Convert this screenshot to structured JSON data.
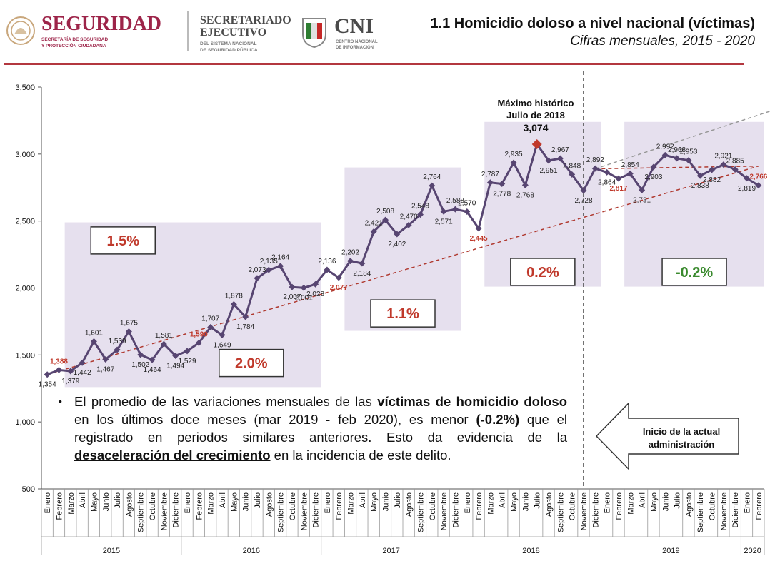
{
  "header": {
    "seguridad_name": "SEGURIDAD",
    "seguridad_sub1": "SECRETARÍA DE SEGURIDAD",
    "seguridad_sub2": "Y PROTECCIÓN CIUDADANA",
    "sesnsp_line1": "SECRETARIADO",
    "sesnsp_line2": "EJECUTIVO",
    "sesnsp_sub1": "DEL SISTEMA NACIONAL",
    "sesnsp_sub2": "DE SEGURIDAD PÚBLICA",
    "cni_name": "CNI",
    "cni_sub1": "CENTRO NACIONAL",
    "cni_sub2": "DE INFORMACIÓN",
    "title": "1.1 Homicidio doloso a nivel nacional (víctimas)",
    "subtitle": "Cifras mensuales, 2015 - 2020"
  },
  "colors": {
    "line": "#574571",
    "trend": "#b03a30",
    "highlight": "#c0392b",
    "box_fill": "#e6e0ee",
    "positive": "#c0392b",
    "negative": "#3a8a2e",
    "max_marker": "#c0392b",
    "header_rule": "#b3373f"
  },
  "chart_data": {
    "type": "line",
    "ylim": [
      500,
      3500
    ],
    "yticks": [
      "500",
      "1,000",
      "1,500",
      "2,000",
      "2,500",
      "3,000",
      "3,500"
    ],
    "months": [
      "Enero",
      "Febrero",
      "Marzo",
      "Abril",
      "Mayo",
      "Junio",
      "Julio",
      "Agosto",
      "Septiembre",
      "Octubre",
      "Noviembre",
      "Diciembre",
      "Enero",
      "Febrero",
      "Marzo",
      "Abril",
      "Mayo",
      "Junio",
      "Julio",
      "Agosto",
      "Septiembre",
      "Octubre",
      "Noviembre",
      "Diciembre",
      "Enero",
      "Febrero",
      "Marzo",
      "Abril",
      "Mayo",
      "Junio",
      "Julio",
      "Agosto",
      "Septiembre",
      "Octubre",
      "Noviembre",
      "Diciembre",
      "Enero",
      "Febrero",
      "Marzo",
      "Abril",
      "Mayo",
      "Junio",
      "Julio",
      "Agosto",
      "Septiembre",
      "Octubre",
      "Noviembre",
      "Diciembre",
      "Enero",
      "Febrero",
      "Marzo",
      "Abril",
      "Mayo",
      "Junio",
      "Julio",
      "Agosto",
      "Septiembre",
      "Octubre",
      "Noviembre",
      "Diciembre",
      "Enero",
      "Febrero"
    ],
    "years": [
      {
        "label": "2015",
        "start": 0,
        "end": 11
      },
      {
        "label": "2016",
        "start": 12,
        "end": 23
      },
      {
        "label": "2017",
        "start": 24,
        "end": 35
      },
      {
        "label": "2018",
        "start": 36,
        "end": 47
      },
      {
        "label": "2019",
        "start": 48,
        "end": 59
      },
      {
        "label": "2020",
        "start": 60,
        "end": 61
      }
    ],
    "values": [
      1354,
      1388,
      1379,
      1442,
      1601,
      1467,
      1539,
      1675,
      1502,
      1464,
      1581,
      1494,
      1529,
      1590,
      1707,
      1649,
      1878,
      1784,
      2073,
      2135,
      2164,
      2007,
      2001,
      2028,
      2136,
      2077,
      2202,
      2184,
      2421,
      2508,
      2402,
      2470,
      2548,
      2764,
      2571,
      2588,
      2570,
      2445,
      2787,
      2778,
      2935,
      2768,
      3074,
      2951,
      2967,
      2848,
      2728,
      2892,
      2864,
      2817,
      2854,
      2731,
      2903,
      2992,
      2968,
      2953,
      2838,
      2882,
      2921,
      2885,
      2819,
      2766
    ],
    "labels": [
      "1,354",
      "1,388",
      "1,379",
      "1,442",
      "1,601",
      "1,467",
      "1,539",
      "1,675",
      "1,502",
      "1,464",
      "1,581",
      "1,494",
      "1,529",
      "1,590",
      "1,707",
      "1,649",
      "1,878",
      "1,784",
      "2,073",
      "2,135",
      "2,164",
      "2,007",
      "2,001",
      "2,028",
      "2,136",
      "2,077",
      "2,202",
      "2,184",
      "2,421",
      "2,508",
      "2,402",
      "2,470",
      "2,548",
      "2,764",
      "2,571",
      "2,588",
      "2,570",
      "2,445",
      "2,787",
      "2,778",
      "2,935",
      "2,768",
      "3,074",
      "2,951",
      "2,967",
      "2,848",
      "2,728",
      "2,892",
      "2,864",
      "2,817",
      "2,854",
      "2,731",
      "2,903",
      "2,992",
      "2,968",
      "2,953",
      "2,838",
      "2,882",
      "2,921",
      "2,885",
      "2,819",
      "2,766"
    ],
    "label_pos": [
      "below",
      "above",
      "below",
      "below",
      "above",
      "below",
      "above",
      "above",
      "below",
      "below",
      "above",
      "below",
      "below",
      "above",
      "above",
      "below",
      "above",
      "below",
      "above",
      "above",
      "above",
      "below",
      "below",
      "below",
      "above",
      "below",
      "above",
      "below",
      "above",
      "above",
      "below",
      "above",
      "above",
      "above",
      "below",
      "above",
      "above",
      "below",
      "above",
      "below",
      "above",
      "below",
      "above",
      "below",
      "above",
      "above",
      "below",
      "above",
      "below",
      "below",
      "above",
      "below",
      "below",
      "above",
      "above",
      "above",
      "below",
      "below",
      "above",
      "above",
      "below",
      "above"
    ],
    "highlighted": [
      1,
      13,
      25,
      37,
      49,
      61
    ],
    "max_index": 42,
    "max_label_line1": "Máximo histórico",
    "max_label_line2": "Julio de 2018",
    "max_value_label": "3,074",
    "trend_start": [
      0,
      1354
    ],
    "trend_end": [
      61,
      2910
    ],
    "projection_start": [
      47,
      2890
    ],
    "projection_end": [
      62,
      3320
    ],
    "flat_end": [
      61,
      2910
    ],
    "divider_after_index": 46,
    "period_boxes": [
      {
        "start": 1.5,
        "end": 11.5,
        "ymin": 1260,
        "ymax": 2490,
        "label": "1.5%",
        "label_y": 2355,
        "kind": "positive"
      },
      {
        "start": 11.5,
        "end": 23.5,
        "ymin": 1260,
        "ymax": 2490,
        "label": "2.0%",
        "label_y": 1440,
        "kind": "positive"
      },
      {
        "start": 25.5,
        "end": 35.5,
        "ymin": 1680,
        "ymax": 2900,
        "label": "1.1%",
        "label_y": 1810,
        "kind": "positive"
      },
      {
        "start": 37.5,
        "end": 47.5,
        "ymin": 2010,
        "ymax": 3240,
        "label": "0.2%",
        "label_y": 2120,
        "kind": "positive"
      },
      {
        "start": 49.5,
        "end": 61.5,
        "ymin": 2010,
        "ymax": 3240,
        "label": "-0.2%",
        "label_y": 2120,
        "kind": "negative"
      }
    ]
  },
  "footnote": {
    "bullet": "•",
    "part1": "El promedio de las variaciones mensuales de las ",
    "bold1": "víctimas de homicidio doloso",
    "part2": " en los últimos doce meses (mar 2019 - feb 2020), es menor ",
    "bold2": "(-0.2%)",
    "part3": " que el registrado en periodos similares anteriores. Esto da evidencia de la ",
    "bold3": "desaceleración del crecimiento",
    "part4": " en la incidencia de este delito."
  },
  "admin_arrow": {
    "line1": "Inicio de la actual",
    "line2": "administración"
  }
}
